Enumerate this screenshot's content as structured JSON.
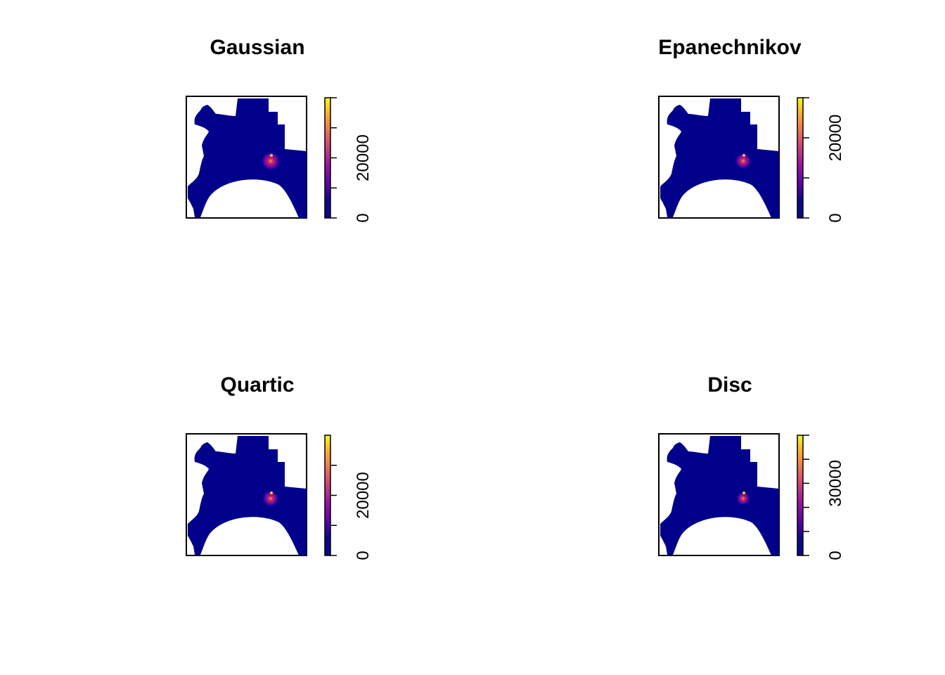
{
  "figure": {
    "panels": [
      {
        "title": "Gaussian"
      },
      {
        "title": "Epanechnikov"
      },
      {
        "title": "Quartic"
      },
      {
        "title": "Disc"
      }
    ]
  },
  "chart_data": [
    {
      "type": "heatmap",
      "title": "Gaussian",
      "xlabel": "",
      "ylabel": "",
      "legend": "right",
      "colorbar": {
        "min": 0,
        "max": 40000,
        "ticks": [
          0,
          10000,
          20000,
          30000,
          40000
        ],
        "tick_labels": [
          "0",
          "",
          "20000",
          "",
          ""
        ]
      },
      "peak_value": 40000
    },
    {
      "type": "heatmap",
      "title": "Epanechnikov",
      "xlabel": "",
      "ylabel": "",
      "legend": "right",
      "colorbar": {
        "min": 0,
        "max": 30000,
        "ticks": [
          0,
          10000,
          20000,
          30000
        ],
        "tick_labels": [
          "0",
          "",
          "20000",
          ""
        ]
      },
      "peak_value": 30000
    },
    {
      "type": "heatmap",
      "title": "Quartic",
      "xlabel": "",
      "ylabel": "",
      "legend": "right",
      "colorbar": {
        "min": 0,
        "max": 40000,
        "ticks": [
          0,
          10000,
          20000,
          30000
        ],
        "tick_labels": [
          "0",
          "",
          "20000",
          ""
        ]
      },
      "peak_value": 40000
    },
    {
      "type": "heatmap",
      "title": "Disc",
      "xlabel": "",
      "ylabel": "",
      "legend": "right",
      "colorbar": {
        "min": 0,
        "max": 50000,
        "ticks": [
          0,
          10000,
          20000,
          30000,
          40000,
          50000
        ],
        "tick_labels": [
          "0",
          "",
          "",
          "30000",
          "",
          ""
        ]
      },
      "peak_value": 50000
    }
  ],
  "colors": {
    "palette": [
      "#0d0887",
      "#3c0099",
      "#7a0b8c",
      "#b52076",
      "#e34d5a",
      "#f78840",
      "#fcc12a",
      "#f4f723"
    ],
    "base_fill": "#00008b",
    "frame": "#000000"
  }
}
